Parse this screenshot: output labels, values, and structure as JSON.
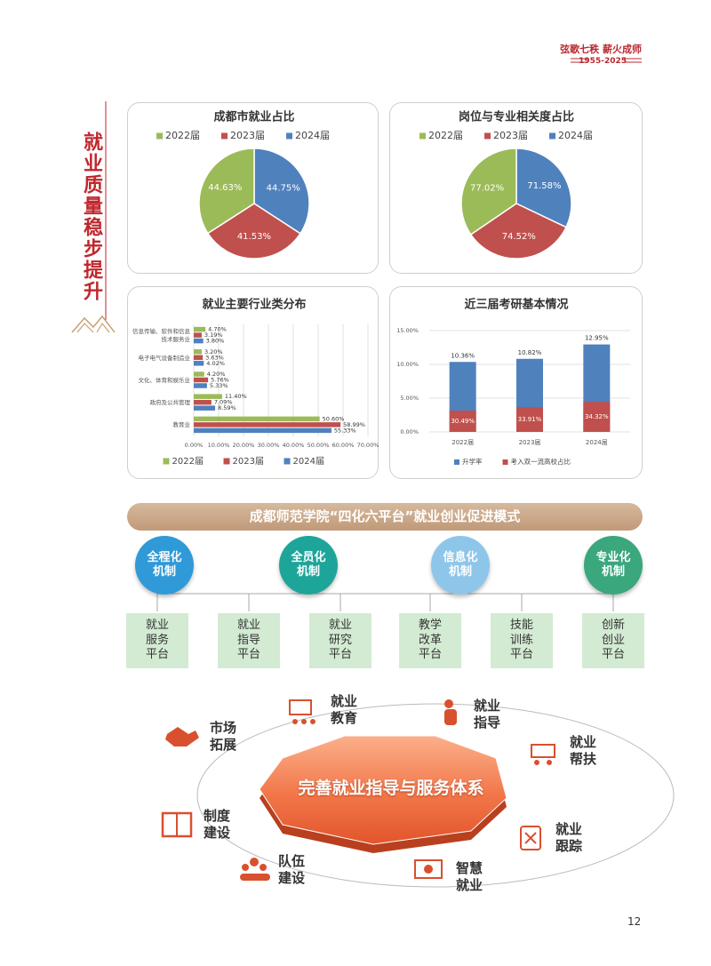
{
  "header": {
    "slogan": "弦歌七秩 薪火成师",
    "years": "1955-2025"
  },
  "section_title": "就业质量稳步提升",
  "chart_data": [
    {
      "type": "pie",
      "title": "成都市就业占比",
      "categories": [
        "2022届",
        "2023届",
        "2024届"
      ],
      "values": [
        44.63,
        41.53,
        44.75
      ],
      "value_labels": [
        "44.63%",
        "41.53%",
        "44.75%"
      ],
      "colors": [
        "#9bbb59",
        "#c0504d",
        "#4f81bd"
      ],
      "legend": "top"
    },
    {
      "type": "pie",
      "title": "岗位与专业相关度占比",
      "categories": [
        "2022届",
        "2023届",
        "2024届"
      ],
      "values": [
        77.02,
        74.52,
        71.58
      ],
      "value_labels": [
        "77.02%",
        "74.52%",
        "71.58%"
      ],
      "colors": [
        "#9bbb59",
        "#c0504d",
        "#4f81bd"
      ],
      "legend": "top"
    },
    {
      "type": "hbar",
      "title": "就业主要行业类分布",
      "categories": [
        "信息传输、软件和信息技术服务业",
        "电子电气设备制造业",
        "文化、体育和娱乐业",
        "政府及公共管理",
        "教育业"
      ],
      "series": [
        {
          "name": "2022届",
          "color": "#9bbb59",
          "values": [
            4.7,
            3.2,
            4.2,
            11.4,
            50.6
          ],
          "value_labels": [
            "4.70%",
            "3.20%",
            "4.20%",
            "11.40%",
            "50.60%"
          ]
        },
        {
          "name": "2023届",
          "color": "#c0504d",
          "values": [
            3.19,
            3.63,
            5.76,
            7.09,
            58.99
          ],
          "value_labels": [
            "3.19%",
            "3.63%",
            "5.76%",
            "7.09%",
            "58.99%"
          ]
        },
        {
          "name": "2024届",
          "color": "#4f81bd",
          "values": [
            3.8,
            4.02,
            5.33,
            8.59,
            55.33
          ],
          "value_labels": [
            "3.80%",
            "4.02%",
            "5.33%",
            "8.59%",
            "55.33%"
          ]
        }
      ],
      "xlim": [
        0,
        70
      ],
      "xticks": [
        {
          "value": 0,
          "label": "0.00%"
        },
        {
          "value": 10,
          "label": "10.00%"
        },
        {
          "value": 20,
          "label": "20.00%"
        },
        {
          "value": 30,
          "label": "30.00%"
        },
        {
          "value": 40,
          "label": "40.00%"
        },
        {
          "value": 50,
          "label": "50.00%"
        },
        {
          "value": 60,
          "label": "60.00%"
        },
        {
          "value": 70,
          "label": "70.00%"
        }
      ],
      "grid": true,
      "legend": "bottom"
    },
    {
      "type": "overlay-bar",
      "title": "近三届考研基本情况",
      "categories": [
        "2022届",
        "2023届",
        "2024届"
      ],
      "series": [
        {
          "name": "升学率",
          "color": "#4f81bd",
          "values": [
            10.36,
            10.82,
            12.95
          ],
          "value_labels": [
            "10.36%",
            "10.82%",
            "12.95%"
          ]
        },
        {
          "name": "考入双一流高校占比",
          "color": "#c0504d",
          "values": [
            30.49,
            33.91,
            34.32
          ],
          "value_labels": [
            "30.49%",
            "33.91%",
            "34.32%"
          ]
        }
      ],
      "ylim": [
        0,
        15
      ],
      "yticks": [
        {
          "value": 0,
          "label": "0.00%"
        },
        {
          "value": 5,
          "label": "5.00%"
        },
        {
          "value": 10,
          "label": "10.00%"
        },
        {
          "value": 15,
          "label": "15.00%"
        }
      ],
      "grid": true,
      "legend": "bottom"
    }
  ],
  "model": {
    "title": "成都师范学院“四化六平台”就业创业促进模式",
    "mechanisms": [
      "全程化机制",
      "全员化机制",
      "信息化机制",
      "专业化机制"
    ],
    "platforms": [
      "就业服务平台",
      "就业指导平台",
      "就业研究平台",
      "教学改革平台",
      "技能训练平台",
      "创新创业平台"
    ]
  },
  "system": {
    "center": "完善就业指导与服务体系",
    "items": [
      "就业教育",
      "就业指导",
      "就业帮扶",
      "就业跟踪",
      "智慧就业",
      "队伍建设",
      "制度建设",
      "市场拓展"
    ]
  },
  "page_number": "12"
}
